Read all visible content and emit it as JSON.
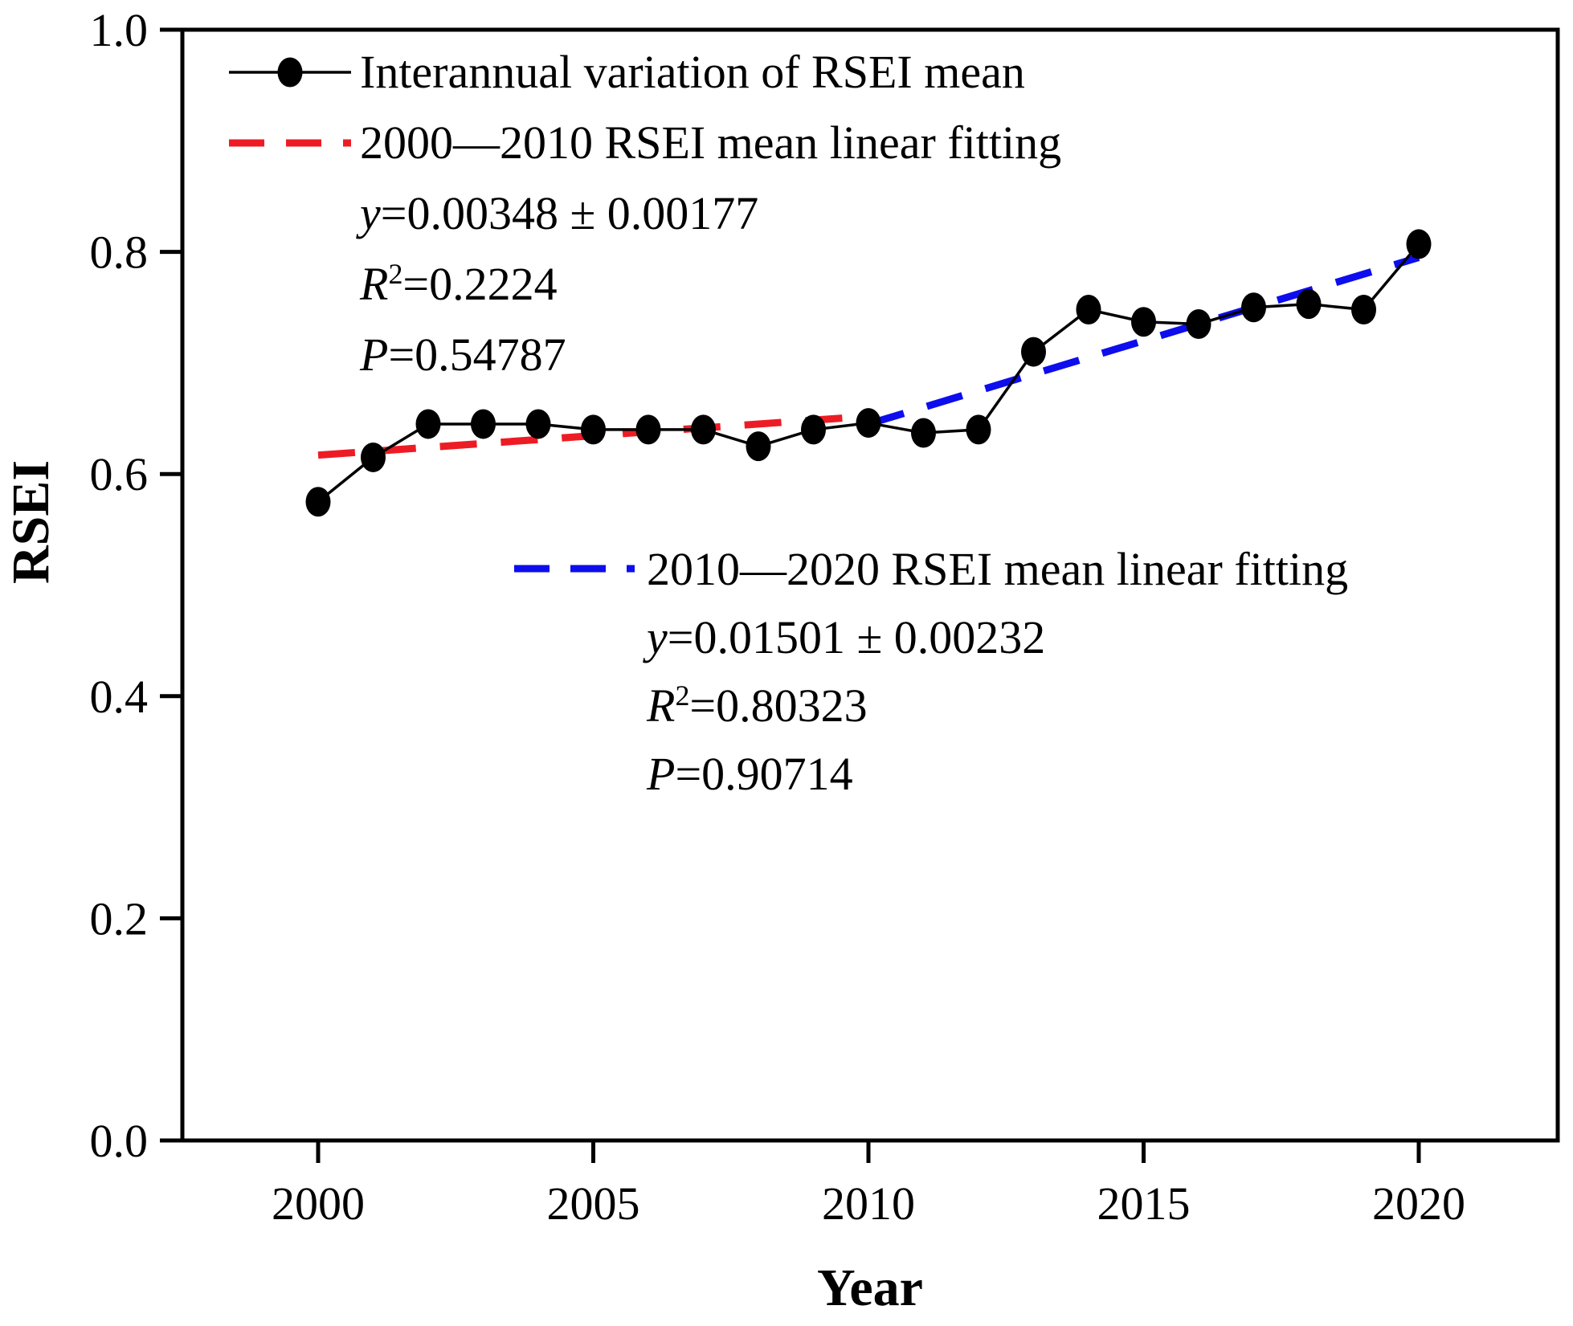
{
  "figure": {
    "background": "#ffffff",
    "axis_color": "#000000"
  },
  "legend": {
    "series_entry": {
      "label": "Interannual variation of RSEI mean"
    },
    "fit1": {
      "label": "2000—2010 RSEI mean linear fitting",
      "eq_var": "y",
      "eq_rest": "=0.00348 ± 0.00177",
      "r2_var": "R",
      "r2_sup": "2",
      "r2_rest": "=0.2224",
      "p_var": "P",
      "p_rest": "=0.54787"
    },
    "fit2": {
      "label": "2010—2020 RSEI mean linear fitting",
      "eq_var": "y",
      "eq_rest": "=0.01501 ± 0.00232",
      "r2_var": "R",
      "r2_sup": "2",
      "r2_rest": "=0.80323",
      "p_var": "P",
      "p_rest": "=0.90714"
    }
  },
  "chart_data": {
    "type": "line",
    "title": "",
    "x_label": "Year",
    "y_label": "RSEI",
    "x": [
      2000,
      2001,
      2002,
      2003,
      2004,
      2005,
      2006,
      2007,
      2008,
      2009,
      2010,
      2011,
      2012,
      2013,
      2014,
      2015,
      2016,
      2017,
      2018,
      2019,
      2020
    ],
    "series": [
      {
        "name": "Interannual variation of RSEI mean",
        "color": "#000000",
        "line_style": "solid",
        "marker": "filled-circle",
        "values": [
          0.575,
          0.615,
          0.645,
          0.645,
          0.645,
          0.64,
          0.64,
          0.64,
          0.625,
          0.64,
          0.646,
          0.637,
          0.64,
          0.71,
          0.748,
          0.737,
          0.735,
          0.75,
          0.753,
          0.748,
          0.807
        ]
      }
    ],
    "fit_lines": [
      {
        "name": "2000—2010 RSEI mean linear fitting",
        "color": "#ed1c24",
        "line_style": "dashed",
        "x_start": 2000,
        "y_start": 0.617,
        "x_end": 2010,
        "y_end": 0.652,
        "slope_text": "y=0.00348 ± 0.00177",
        "r2": 0.2224,
        "p": 0.54787
      },
      {
        "name": "2010—2020 RSEI mean linear fitting",
        "color": "#0d0dee",
        "line_style": "dashed",
        "x_start": 2010,
        "y_start": 0.645,
        "x_end": 2020,
        "y_end": 0.795,
        "slope_text": "y=0.01501 ± 0.00232",
        "r2": 0.80323,
        "p": 0.90714
      }
    ],
    "x_ticks": [
      "2000",
      "2005",
      "2010",
      "2015",
      "2020"
    ],
    "y_ticks": [
      "0.0",
      "0.2",
      "0.4",
      "0.6",
      "0.8",
      "1.0"
    ],
    "xlim": [
      1997.5,
      2022.5
    ],
    "ylim": [
      0.0,
      1.0
    ],
    "grid": false,
    "legend_position": "inside-top-left and inside-middle"
  }
}
